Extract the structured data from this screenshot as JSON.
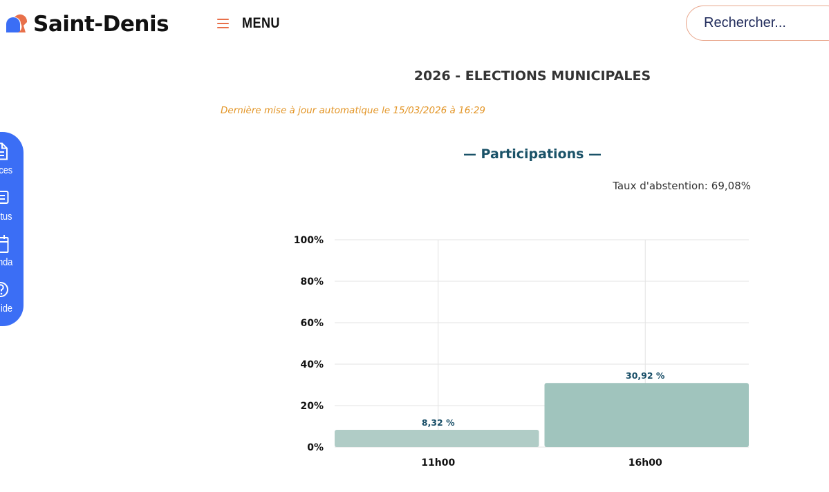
{
  "header": {
    "logo_text": "Saint-Denis",
    "menu_label": "MENU",
    "search_placeholder": "Rechercher..."
  },
  "dock": {
    "items": [
      {
        "label": "vices",
        "icon": "document-icon"
      },
      {
        "label": "ctus",
        "icon": "news-icon"
      },
      {
        "label": "enda",
        "icon": "calendar-icon"
      },
      {
        "label": "ide",
        "icon": "help-icon"
      }
    ]
  },
  "main": {
    "title": "2026 - ELECTIONS MUNICIPALES",
    "update_text": "Dernière mise à jour automatique le 15/03/2026 à 16:29",
    "section_title": "— Participations —",
    "abstention_label": "Taux d'abstention:",
    "abstention_value": "69,08%"
  },
  "colors": {
    "brand_blue": "#3b6ef5",
    "brand_orange": "#e8704a",
    "update_orange": "#e39526",
    "section_teal": "#1a5268",
    "bar_1": "#b0ccc6",
    "bar_2": "#a0c4bd",
    "data_label": "#1a4f68"
  },
  "chart_data": {
    "type": "bar",
    "categories": [
      "11h00",
      "16h00"
    ],
    "values": [
      8.32,
      30.92
    ],
    "data_labels": [
      "8,32 %",
      "30,92 %"
    ],
    "ylim": [
      0,
      100
    ],
    "yticks": [
      "0%",
      "20%",
      "40%",
      "60%",
      "80%",
      "100%"
    ],
    "grid": true
  }
}
